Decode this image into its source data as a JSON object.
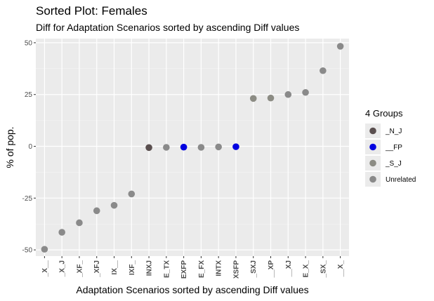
{
  "chart_data": {
    "type": "scatter",
    "title": "Sorted Plot: Females",
    "subtitle": "Diff for Adaptation Scenarios sorted by ascending Diff values",
    "xlabel": "Adaptation Scenarios sorted by ascending Diff values",
    "ylabel": "% of pop.",
    "ylim": [
      -53,
      52
    ],
    "yticks": [
      -50,
      -25,
      0,
      25,
      50
    ],
    "ytick_labels": [
      "-50",
      "-25",
      "0",
      "25",
      "50"
    ],
    "grid": true,
    "legend": {
      "title": "4 Groups",
      "position": "right",
      "entries": [
        {
          "label": "_N_J",
          "color": "#5a4f4f"
        },
        {
          "label": "__FP",
          "color": "#0000e0"
        },
        {
          "label": "_S_J",
          "color": "#8c8c84"
        },
        {
          "label": "Unrelated",
          "color": "#8a8a8a"
        }
      ]
    },
    "categories": [
      "_X__",
      "_X_J",
      "_XF_",
      "_XFJ",
      "IX__",
      "IXF_",
      "INXJ",
      "E_TX",
      "EXFP",
      "E_FX",
      "INTX",
      "XSFP",
      "_SXJ",
      "__XP",
      "__XJ",
      "E_X_",
      "_SX_",
      "__X_"
    ],
    "values": [
      -49.7,
      -41.5,
      -36.9,
      -31.1,
      -28.5,
      -23.0,
      -0.6,
      -0.5,
      -0.4,
      -0.5,
      -0.3,
      -0.2,
      23.1,
      23.3,
      25.0,
      26.0,
      36.5,
      48.3
    ],
    "groups": [
      "Unrelated",
      "Unrelated",
      "Unrelated",
      "Unrelated",
      "Unrelated",
      "Unrelated",
      "_N_J",
      "Unrelated",
      "__FP",
      "Unrelated",
      "Unrelated",
      "__FP",
      "_S_J",
      "_S_J",
      "Unrelated",
      "Unrelated",
      "Unrelated",
      "Unrelated"
    ]
  }
}
